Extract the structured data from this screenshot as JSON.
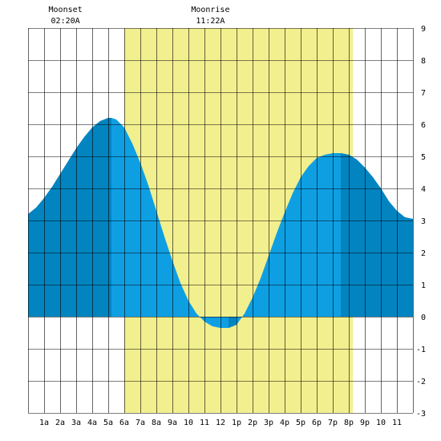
{
  "chart_data": {
    "type": "area",
    "x_unit": "hours",
    "xlim": [
      0,
      24
    ],
    "ylim": [
      -3,
      9
    ],
    "y_ticks": [
      -3,
      -2,
      -1,
      0,
      1,
      2,
      3,
      4,
      5,
      6,
      7,
      8,
      9
    ],
    "y_tick_labels": [
      "-3",
      "-2",
      "-1",
      "0",
      "1",
      "2",
      "3",
      "4",
      "5",
      "6",
      "7",
      "8",
      "9"
    ],
    "x_ticks": [
      1,
      2,
      3,
      4,
      5,
      6,
      7,
      8,
      9,
      10,
      11,
      12,
      13,
      14,
      15,
      16,
      17,
      18,
      19,
      20,
      21,
      22,
      23
    ],
    "x_tick_labels": [
      "1a",
      "2a",
      "3a",
      "4a",
      "5a",
      "6a",
      "7a",
      "8a",
      "9a",
      "10",
      "11",
      "12",
      "1p",
      "2p",
      "3p",
      "4p",
      "5p",
      "6p",
      "7p",
      "8p",
      "9p",
      "10",
      "11"
    ],
    "grid": true,
    "daylight": {
      "start": 6.0,
      "end": 20.25
    },
    "tide_extremes": [
      {
        "type": "high",
        "x": 5.2,
        "y": 6.2
      },
      {
        "type": "low",
        "x": 12.5,
        "y": -0.35
      },
      {
        "type": "high",
        "x": 19.5,
        "y": 5.1
      }
    ],
    "tide_series": [
      [
        0,
        3.2
      ],
      [
        0.5,
        3.4
      ],
      [
        1,
        3.7
      ],
      [
        1.5,
        4.05
      ],
      [
        2,
        4.45
      ],
      [
        2.5,
        4.85
      ],
      [
        3,
        5.25
      ],
      [
        3.5,
        5.6
      ],
      [
        4,
        5.9
      ],
      [
        4.5,
        6.1
      ],
      [
        5,
        6.2
      ],
      [
        5.2,
        6.2
      ],
      [
        5.5,
        6.15
      ],
      [
        6,
        5.9
      ],
      [
        6.5,
        5.4
      ],
      [
        7,
        4.8
      ],
      [
        7.5,
        4.1
      ],
      [
        8,
        3.3
      ],
      [
        8.5,
        2.5
      ],
      [
        9,
        1.75
      ],
      [
        9.5,
        1.05
      ],
      [
        10,
        0.5
      ],
      [
        10.5,
        0.1
      ],
      [
        11,
        -0.15
      ],
      [
        11.5,
        -0.3
      ],
      [
        12,
        -0.35
      ],
      [
        12.5,
        -0.35
      ],
      [
        13,
        -0.25
      ],
      [
        13.5,
        0.1
      ],
      [
        14,
        0.6
      ],
      [
        14.5,
        1.2
      ],
      [
        15,
        1.9
      ],
      [
        15.5,
        2.6
      ],
      [
        16,
        3.25
      ],
      [
        16.5,
        3.85
      ],
      [
        17,
        4.35
      ],
      [
        17.5,
        4.7
      ],
      [
        18,
        4.95
      ],
      [
        18.5,
        5.05
      ],
      [
        19,
        5.1
      ],
      [
        19.5,
        5.1
      ],
      [
        20,
        5.05
      ],
      [
        20.5,
        4.9
      ],
      [
        21,
        4.65
      ],
      [
        21.5,
        4.35
      ],
      [
        22,
        4.0
      ],
      [
        22.5,
        3.6
      ],
      [
        23,
        3.3
      ],
      [
        23.5,
        3.1
      ],
      [
        24,
        3.05
      ]
    ],
    "dark_periods": [
      [
        0,
        5.2
      ],
      [
        12.5,
        13.0
      ],
      [
        19.5,
        24
      ]
    ],
    "annotations": [
      {
        "label": "Moonset",
        "time": "02:20A",
        "x": 2.33
      },
      {
        "label": "Moonrise",
        "time": "11:22A",
        "x": 11.37
      }
    ],
    "colors": {
      "daylight": "#f2ef8f",
      "tide_light": "#0e9fe3",
      "tide_dark": "#0284c0",
      "grid": "#000000"
    }
  }
}
